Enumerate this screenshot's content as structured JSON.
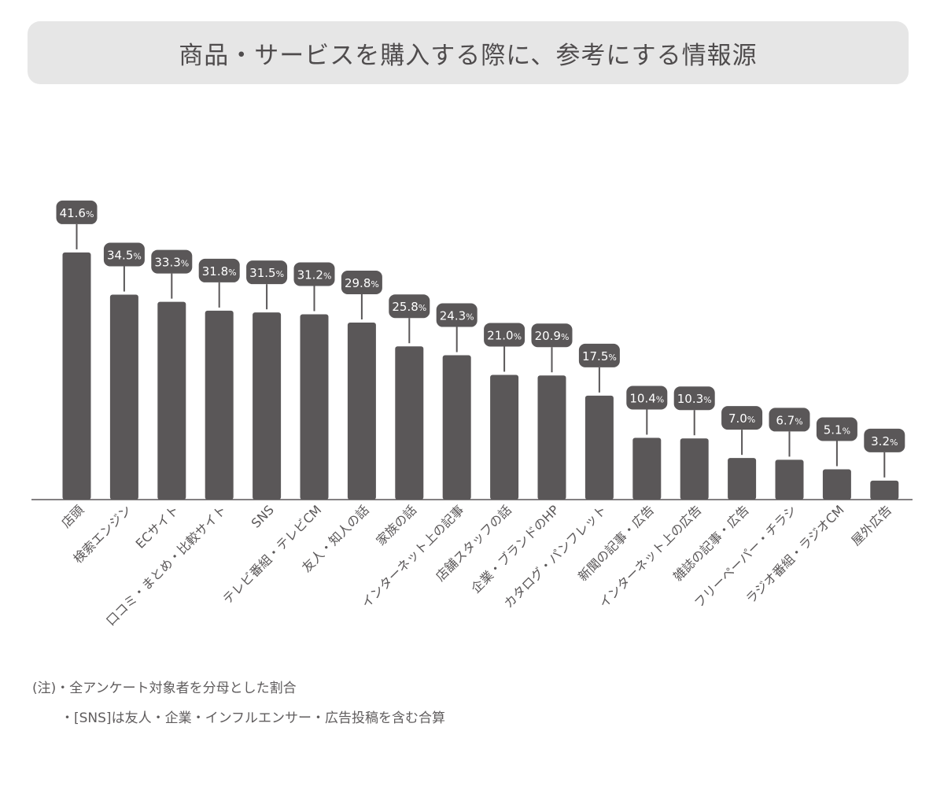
{
  "chart_data": {
    "type": "bar",
    "title": "商品・サービスを購入する際に、参考にする情報源",
    "categories": [
      "店頭",
      "検索エンジン",
      "ECサイト",
      "口コミ・まとめ・比較サイト",
      "SNS",
      "テレビ番組・テレビCM",
      "友人・知人の話",
      "家族の話",
      "インターネット上の記事",
      "店舗スタッフの話",
      "企業・ブランドのHP",
      "カタログ・パンフレット",
      "新聞の記事・広告",
      "インターネット上の広告",
      "雑誌の記事・広告",
      "フリーペーパー・チラシ",
      "ラジオ番組・ラジオCM",
      "屋外広告"
    ],
    "values": [
      41.6,
      34.5,
      33.3,
      31.8,
      31.5,
      31.2,
      29.8,
      25.8,
      24.3,
      21.0,
      20.9,
      17.5,
      10.4,
      10.3,
      7.0,
      6.7,
      5.1,
      3.2
    ],
    "value_labels": [
      "41.6",
      "34.5",
      "33.3",
      "31.8",
      "31.5",
      "31.2",
      "29.8",
      "25.8",
      "24.3",
      "21.0",
      "20.9",
      "17.5",
      "10.4",
      "10.3",
      "7.0",
      "6.7",
      "5.1",
      "3.2"
    ],
    "unit": "%",
    "xlabel": "",
    "ylabel": "",
    "grid": false,
    "bar_color": "#5a5758",
    "label_bg_color": "#5a5758",
    "label_text_color": "#ffffff"
  },
  "notes": {
    "line1": "(注)・全アンケート対象者を分母とした割合",
    "line2": "・[SNS]は友人・企業・インフルエンサー・広告投稿を含む合算"
  }
}
